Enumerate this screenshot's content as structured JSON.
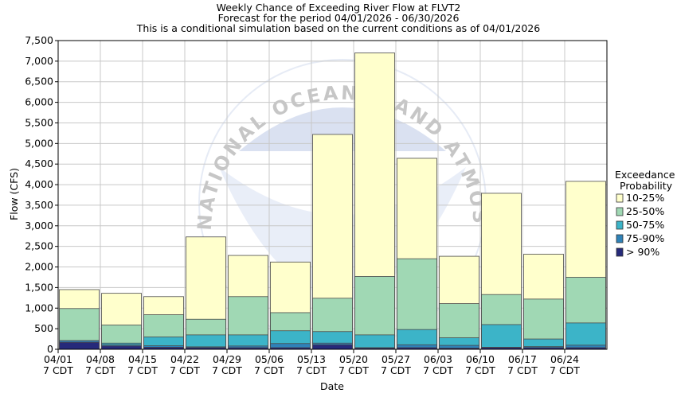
{
  "chart_data": {
    "type": "bar",
    "stacked": true,
    "title": "Weekly Chance of Exceeding River Flow at FLVT2",
    "subtitle_lines": [
      "Forecast for the period 04/01/2026 - 06/30/2026",
      "This is a conditional simulation based on the current conditions as of 04/01/2026"
    ],
    "xlabel": "Date",
    "ylabel": "Flow (CFS)",
    "ylim": [
      0,
      7500
    ],
    "y_ticks": [
      "0",
      "500",
      "1,000",
      "1,500",
      "2,000",
      "2,500",
      "3,000",
      "3,500",
      "4,000",
      "4,500",
      "5,000",
      "5,500",
      "6,000",
      "6,500",
      "7,000",
      "7,500"
    ],
    "grid": true,
    "categories": [
      [
        "04/01",
        "7 CDT"
      ],
      [
        "04/08",
        "7 CDT"
      ],
      [
        "04/15",
        "7 CDT"
      ],
      [
        "04/22",
        "7 CDT"
      ],
      [
        "04/29",
        "7 CDT"
      ],
      [
        "05/06",
        "7 CDT"
      ],
      [
        "05/13",
        "7 CDT"
      ],
      [
        "05/20",
        "7 CDT"
      ],
      [
        "05/27",
        "7 CDT"
      ],
      [
        "06/03",
        "7 CDT"
      ],
      [
        "06/10",
        "7 CDT"
      ],
      [
        "06/17",
        "7 CDT"
      ],
      [
        "06/24",
        "7 CDT"
      ]
    ],
    "levels": [
      {
        "name": "> 90%",
        "color": "#262a7a",
        "values": [
          170,
          80,
          50,
          40,
          40,
          40,
          110,
          30,
          40,
          30,
          40,
          40,
          40
        ]
      },
      {
        "name": "75-90%",
        "color": "#2f82b8",
        "values": [
          210,
          110,
          85,
          60,
          80,
          140,
          150,
          40,
          110,
          95,
          50,
          65,
          100
        ]
      },
      {
        "name": "50-75%",
        "color": "#3cb4c8",
        "values": [
          210,
          150,
          300,
          350,
          350,
          450,
          430,
          350,
          480,
          280,
          600,
          250,
          640
        ]
      },
      {
        "name": "25-50%",
        "color": "#a0d8b4",
        "values": [
          990,
          590,
          840,
          730,
          1280,
          890,
          1240,
          1770,
          2200,
          1110,
          1330,
          1220,
          1750
        ]
      },
      {
        "name": "10-25%",
        "color": "#ffffcc",
        "values": [
          1450,
          1360,
          1280,
          2730,
          2280,
          2120,
          5220,
          7200,
          4640,
          2260,
          3790,
          2310,
          4080
        ]
      }
    ],
    "legend": {
      "title_lines": [
        "Exceedance",
        "Probability"
      ],
      "placement": "right",
      "order": [
        "10-25%",
        "25-50%",
        "50-75%",
        "75-90%",
        "> 90%"
      ]
    },
    "watermark": "NATIONAL OCEANIC AND ATMOSPHERIC ADMINISTRATION"
  }
}
